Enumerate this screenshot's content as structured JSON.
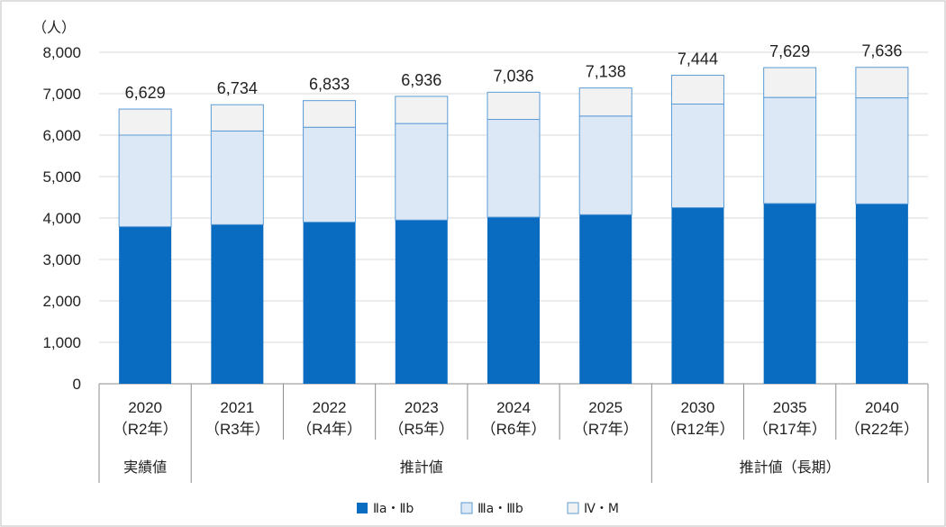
{
  "chart_data": {
    "type": "bar",
    "stacked": true,
    "unit_label": "（人）",
    "ylim": [
      0,
      8000
    ],
    "yticks": [
      "0",
      "1,000",
      "2,000",
      "3,000",
      "4,000",
      "5,000",
      "6,000",
      "7,000",
      "8,000"
    ],
    "grid": true,
    "categories": [
      "2020",
      "2021",
      "2022",
      "2023",
      "2024",
      "2025",
      "2030",
      "2035",
      "2040"
    ],
    "category_sublabels": [
      "（R2年）",
      "（R3年）",
      "（R4年）",
      "（R5年）",
      "（R6年）",
      "（R7年）",
      "（R12年）",
      "（R17年）",
      "（R22年）"
    ],
    "groups": [
      {
        "label": "実績値",
        "from": 0,
        "to": 0
      },
      {
        "label": "推計値",
        "from": 1,
        "to": 5
      },
      {
        "label": "推計値（長期）",
        "from": 6,
        "to": 8
      }
    ],
    "series": [
      {
        "name": "Ⅱa・Ⅱb",
        "color": "#0a6cc0",
        "values": [
          3790,
          3840,
          3900,
          3950,
          4020,
          4080,
          4250,
          4350,
          4340
        ]
      },
      {
        "name": "Ⅲa・Ⅲb",
        "color": "#dce8f6",
        "values": [
          2210,
          2260,
          2290,
          2330,
          2360,
          2380,
          2500,
          2560,
          2560
        ]
      },
      {
        "name": "Ⅳ・M",
        "color": "#f2f2f2",
        "values": [
          629,
          634,
          643,
          656,
          656,
          678,
          694,
          719,
          736
        ]
      }
    ],
    "totals": [
      "6,629",
      "6,734",
      "6,833",
      "6,936",
      "7,036",
      "7,138",
      "7,444",
      "7,629",
      "7,636"
    ],
    "legend_position": "bottom"
  }
}
